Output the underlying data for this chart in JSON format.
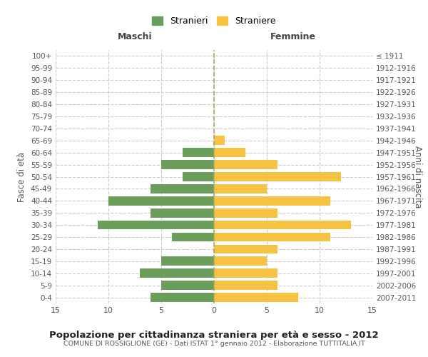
{
  "age_groups": [
    "100+",
    "95-99",
    "90-94",
    "85-89",
    "80-84",
    "75-79",
    "70-74",
    "65-69",
    "60-64",
    "55-59",
    "50-54",
    "45-49",
    "40-44",
    "35-39",
    "30-34",
    "25-29",
    "20-24",
    "15-19",
    "10-14",
    "5-9",
    "0-4"
  ],
  "birth_years": [
    "≤ 1911",
    "1912-1916",
    "1917-1921",
    "1922-1926",
    "1927-1931",
    "1932-1936",
    "1937-1941",
    "1942-1946",
    "1947-1951",
    "1952-1956",
    "1957-1961",
    "1962-1966",
    "1967-1971",
    "1972-1976",
    "1977-1981",
    "1982-1986",
    "1987-1991",
    "1992-1996",
    "1997-2001",
    "2002-2006",
    "2007-2011"
  ],
  "males": [
    0,
    0,
    0,
    0,
    0,
    0,
    0,
    0,
    3,
    5,
    3,
    6,
    10,
    6,
    11,
    4,
    0,
    5,
    7,
    5,
    6
  ],
  "females": [
    0,
    0,
    0,
    0,
    0,
    0,
    0,
    1,
    3,
    6,
    12,
    5,
    11,
    6,
    13,
    11,
    6,
    5,
    6,
    6,
    8
  ],
  "male_color": "#6a9e5a",
  "female_color": "#f5c242",
  "title": "Popolazione per cittadinanza straniera per età e sesso - 2012",
  "subtitle": "COMUNE DI ROSSIGLIONE (GE) - Dati ISTAT 1° gennaio 2012 - Elaborazione TUTTITALIA.IT",
  "ylabel_left": "Fasce di età",
  "ylabel_right": "Anni di nascita",
  "xlabel_left": "Maschi",
  "xlabel_right": "Femmine",
  "legend_male": "Stranieri",
  "legend_female": "Straniere",
  "xlim": 15,
  "background_color": "#ffffff",
  "grid_color": "#cccccc"
}
